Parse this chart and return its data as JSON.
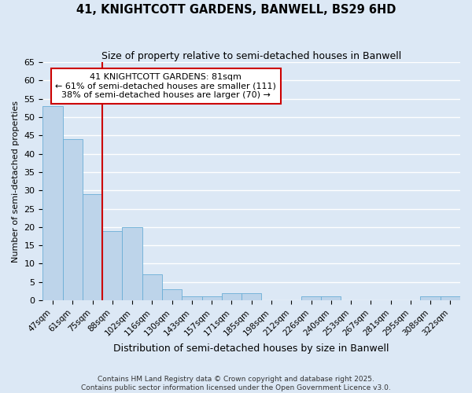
{
  "title": "41, KNIGHTCOTT GARDENS, BANWELL, BS29 6HD",
  "subtitle": "Size of property relative to semi-detached houses in Banwell",
  "xlabel": "Distribution of semi-detached houses by size in Banwell",
  "ylabel": "Number of semi-detached properties",
  "categories": [
    "47sqm",
    "61sqm",
    "75sqm",
    "88sqm",
    "102sqm",
    "116sqm",
    "130sqm",
    "143sqm",
    "157sqm",
    "171sqm",
    "185sqm",
    "198sqm",
    "212sqm",
    "226sqm",
    "240sqm",
    "253sqm",
    "267sqm",
    "281sqm",
    "295sqm",
    "308sqm",
    "322sqm"
  ],
  "values": [
    53,
    44,
    29,
    19,
    20,
    7,
    3,
    1,
    1,
    2,
    2,
    0,
    0,
    1,
    1,
    0,
    0,
    0,
    0,
    1,
    1
  ],
  "bar_color": "#bdd4ea",
  "bar_edge_color": "#6aaed6",
  "background_color": "#dce8f5",
  "grid_color": "#ffffff",
  "red_line_x": 2.5,
  "annotation_title": "41 KNIGHTCOTT GARDENS: 81sqm",
  "annotation_line1": "← 61% of semi-detached houses are smaller (111)",
  "annotation_line2": "38% of semi-detached houses are larger (70) →",
  "annotation_box_color": "#ffffff",
  "annotation_box_edge": "#cc0000",
  "red_line_color": "#cc0000",
  "ylim": [
    0,
    65
  ],
  "yticks": [
    0,
    5,
    10,
    15,
    20,
    25,
    30,
    35,
    40,
    45,
    50,
    55,
    60,
    65
  ],
  "footnote1": "Contains HM Land Registry data © Crown copyright and database right 2025.",
  "footnote2": "Contains public sector information licensed under the Open Government Licence v3.0."
}
